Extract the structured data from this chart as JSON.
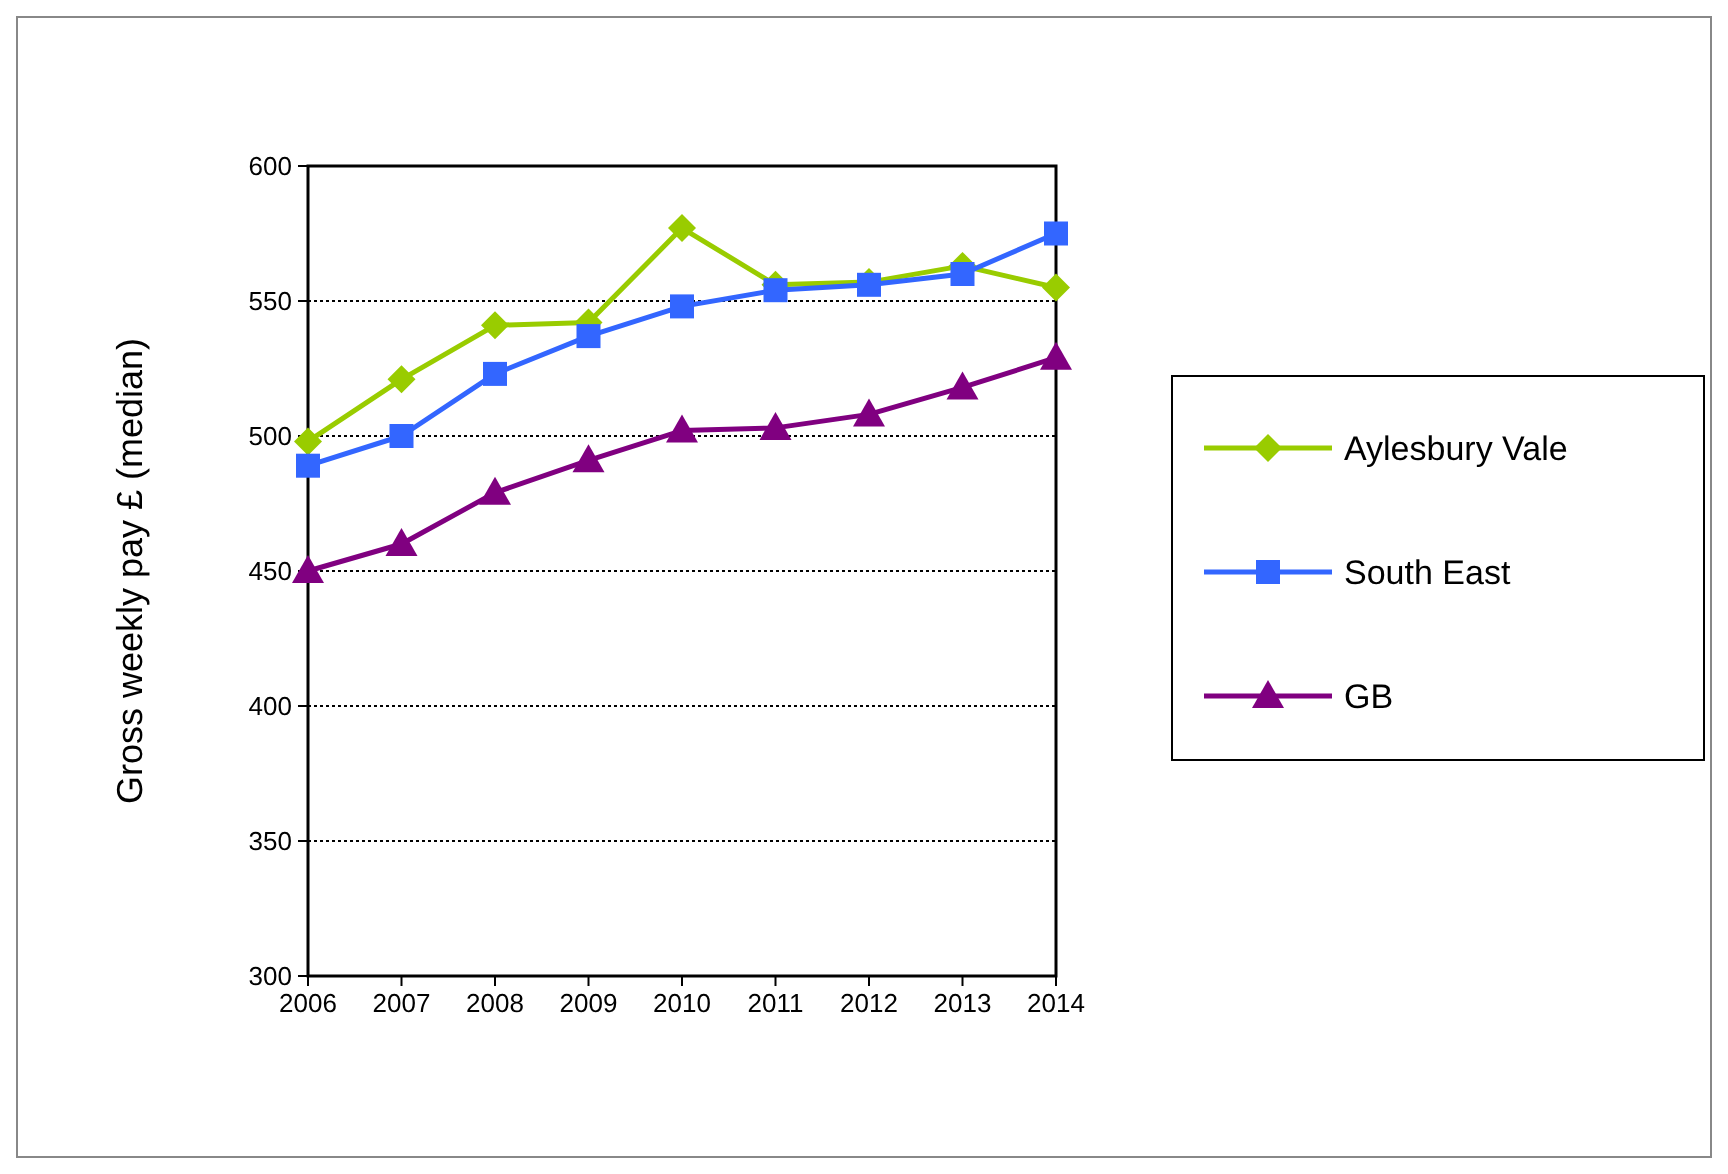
{
  "chart_data": {
    "type": "line",
    "ylabel": "Gross weekly pay £ (median)",
    "x": [
      2006,
      2007,
      2008,
      2009,
      2010,
      2011,
      2012,
      2013,
      2014
    ],
    "xlim": [
      2006,
      2014
    ],
    "xticks": [
      2006,
      2007,
      2008,
      2009,
      2010,
      2011,
      2012,
      2013,
      2014
    ],
    "ylim": [
      300,
      600
    ],
    "yticks": [
      300,
      350,
      400,
      450,
      500,
      550,
      600
    ],
    "grid": "y",
    "legend": "right",
    "series": [
      {
        "name": "Aylesbury Vale",
        "color": "#99cc00",
        "marker": "diamond",
        "values": [
          498,
          521,
          541,
          542,
          577,
          556,
          557,
          563,
          555
        ]
      },
      {
        "name": "South East",
        "color": "#3366ff",
        "marker": "square",
        "values": [
          489,
          500,
          523,
          537,
          548,
          554,
          556,
          560,
          575
        ]
      },
      {
        "name": "GB",
        "color": "#800080",
        "marker": "triangle",
        "values": [
          450,
          460,
          479,
          491,
          502,
          503,
          508,
          518,
          529
        ]
      }
    ]
  }
}
